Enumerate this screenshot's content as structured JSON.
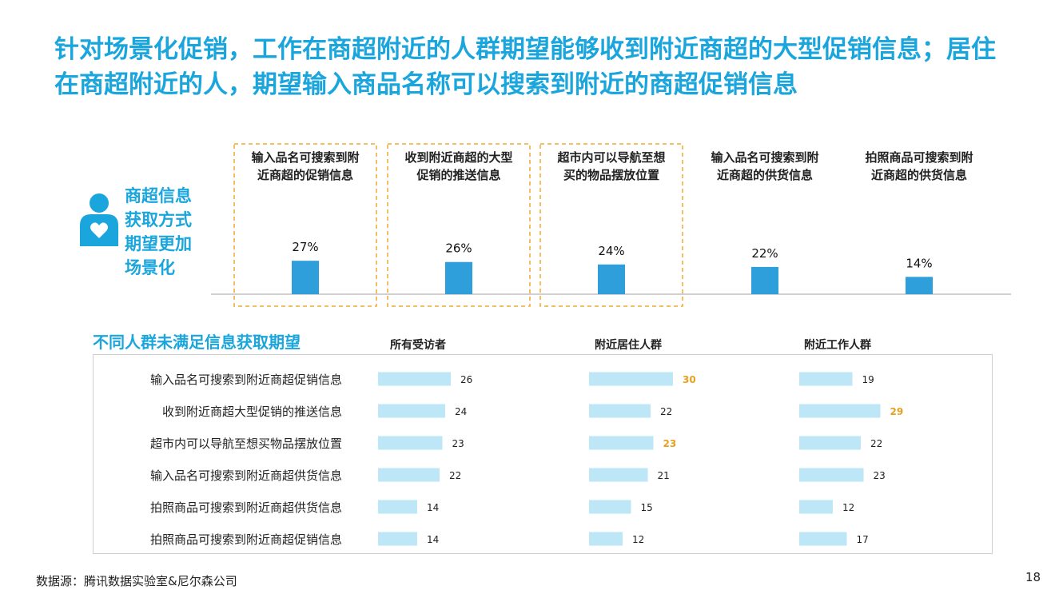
{
  "title": "针对场景化促销，工作在商超附近的人群期望能够收到附近商超的大型促销信息；居住在商超附近的人，期望输入商品名称可以搜索到附近的商超促销信息",
  "side_label": "商超信息\n获取方式\n期望更加\n场景化",
  "section_title": "不同人群未满足信息获取期望",
  "source": "数据源：腾讯数据实验室&尼尔森公司",
  "page_number": "18",
  "colors": {
    "accent": "#1aa6dd",
    "bar_top": "#2f9fdc",
    "bar_bottom": "#bde6f7",
    "highlight": "#e9a020",
    "dashed_border": "#f0a830"
  },
  "icons": {
    "person": "person-heart-icon"
  },
  "chart_data": [
    {
      "type": "bar",
      "categories": [
        [
          "输入品名可搜索到附",
          "近商超的促销信息"
        ],
        [
          "收到附近商超的大型",
          "促销的推送信息"
        ],
        [
          "超市内可以导航至想",
          "买的物品摆放位置"
        ],
        [
          "输入品名可搜索到附",
          "近商超的供货信息"
        ],
        [
          "拍照商品可搜索到附",
          "近商超的供货信息"
        ]
      ],
      "values": [
        27,
        26,
        24,
        22,
        14
      ],
      "value_labels": [
        "27%",
        "26%",
        "24%",
        "22%",
        "14%"
      ],
      "unit": "%",
      "highlighted": [
        true,
        true,
        true,
        false,
        false
      ],
      "ylim": [
        0,
        100
      ]
    },
    {
      "type": "bar",
      "orientation": "horizontal",
      "categories": [
        "输入品名可搜索到附近商超促销信息",
        "收到附近商超大型促销的推送信息",
        "超市内可以导航至想买物品摆放位置",
        "输入品名可搜索到附近商超供货信息",
        "拍照商品可搜索到附近商超供货信息",
        "拍照商品可搜索到附近商超促销信息"
      ],
      "series": [
        {
          "name": "所有受访者",
          "values": [
            26,
            24,
            23,
            22,
            14,
            14
          ],
          "highlight": [
            false,
            false,
            false,
            false,
            false,
            false
          ]
        },
        {
          "name": "附近居住人群",
          "values": [
            30,
            22,
            23,
            21,
            15,
            12
          ],
          "highlight": [
            true,
            false,
            true,
            false,
            false,
            false
          ]
        },
        {
          "name": "附近工作人群",
          "values": [
            19,
            29,
            22,
            23,
            12,
            17
          ],
          "highlight": [
            false,
            true,
            false,
            false,
            false,
            false
          ]
        }
      ]
    }
  ]
}
